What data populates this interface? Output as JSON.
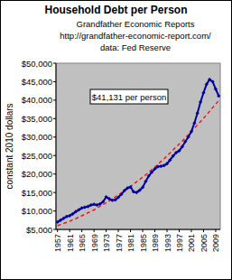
{
  "chart_data": {
    "type": "line",
    "title": "Household Debt per Person",
    "subtitle_lines": [
      "Grandfather Economic Reports",
      "http://grandfather-economic-report.com/",
      "data: Fed Reserve"
    ],
    "annotation": "$41,131 per person",
    "ylabel": "constant 2010 dollars",
    "x": [
      1957,
      1958,
      1959,
      1960,
      1961,
      1962,
      1963,
      1964,
      1965,
      1966,
      1967,
      1968,
      1969,
      1970,
      1971,
      1972,
      1973,
      1974,
      1975,
      1976,
      1977,
      1978,
      1979,
      1980,
      1981,
      1982,
      1983,
      1984,
      1985,
      1986,
      1987,
      1988,
      1989,
      1990,
      1991,
      1992,
      1993,
      1994,
      1995,
      1996,
      1997,
      1998,
      1999,
      2000,
      2001,
      2002,
      2003,
      2004,
      2005,
      2006,
      2007,
      2008,
      2009,
      2010
    ],
    "series": [
      {
        "color": "#0000a0",
        "marker": "diamond",
        "line_style": "solid",
        "values": [
          7000,
          7500,
          8000,
          8500,
          8700,
          9200,
          9800,
          10300,
          10800,
          11000,
          11200,
          11600,
          11800,
          11600,
          11900,
          12500,
          13800,
          13300,
          12900,
          13000,
          13700,
          14500,
          15500,
          16200,
          16500,
          15200,
          15000,
          15600,
          16400,
          18000,
          19500,
          20500,
          21400,
          22000,
          22100,
          22300,
          22800,
          23800,
          24900,
          25800,
          26300,
          27400,
          28800,
          30000,
          31500,
          33800,
          36500,
          39500,
          42000,
          44300,
          45600,
          45000,
          43000,
          41131
        ]
      },
      {
        "color": "#ff0000",
        "marker": "none",
        "line_style": "dashed",
        "values": [
          6000,
          6300,
          6600,
          6900,
          7200,
          7600,
          7900,
          8300,
          8700,
          9100,
          9500,
          9900,
          10300,
          10800,
          11300,
          11700,
          12200,
          12700,
          13200,
          13800,
          14300,
          14900,
          15500,
          16000,
          16600,
          17300,
          17900,
          18500,
          19200,
          19800,
          20500,
          21200,
          21900,
          22600,
          23400,
          24100,
          24900,
          25700,
          26500,
          27300,
          28100,
          28900,
          29800,
          30600,
          31500,
          32400,
          33300,
          34200,
          35100,
          36000,
          37000,
          38000,
          38900,
          39900
        ]
      }
    ],
    "xlim": [
      1956.5,
      2010.5
    ],
    "xticks": [
      1957,
      1961,
      1965,
      1969,
      1973,
      1977,
      1981,
      1985,
      1989,
      1993,
      1997,
      2001,
      2005,
      2009
    ],
    "ylim": [
      5000,
      50000
    ],
    "yticks": [
      {
        "value": 5000,
        "label": "$5,000"
      },
      {
        "value": 10000,
        "label": "$10,000"
      },
      {
        "value": 15000,
        "label": "$15,000"
      },
      {
        "value": 20000,
        "label": "$20,000"
      },
      {
        "value": 25000,
        "label": "$25,000"
      },
      {
        "value": 30000,
        "label": "$30,000"
      },
      {
        "value": 35000,
        "label": "$35,000"
      },
      {
        "value": 40000,
        "label": "$40,000"
      },
      {
        "value": 45000,
        "label": "$45,000"
      },
      {
        "value": 50000,
        "label": "$50,000"
      }
    ],
    "grid": false
  }
}
